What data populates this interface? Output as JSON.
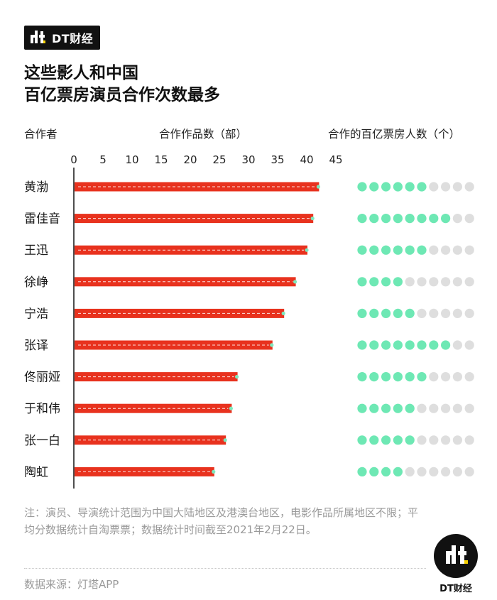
{
  "brand": {
    "name": "DT财经",
    "logo_icon": "dt-logo-icon"
  },
  "title": {
    "line1": "这些影人和中国",
    "line2": "百亿票房演员合作次数最多"
  },
  "headers": {
    "partner": "合作者",
    "works": "合作作品数（部）",
    "actors": "合作的百亿票房人数（个）"
  },
  "colors": {
    "bar": "#e8321e",
    "dot_on": "#6ee8b4",
    "dot_off": "#dedede",
    "axis": "#222222",
    "end_dot": "#7de8bd"
  },
  "chart_data": {
    "type": "bar",
    "orientation": "horizontal",
    "xlim": [
      0,
      45
    ],
    "ticks": [
      0,
      5,
      10,
      15,
      20,
      25,
      30,
      35,
      40,
      45
    ],
    "categories": [
      "黄渤",
      "雷佳音",
      "王迅",
      "徐峥",
      "宁浩",
      "张译",
      "佟丽娅",
      "于和伟",
      "张一白",
      "陶虹"
    ],
    "series": [
      {
        "values": [
          42,
          41,
          40,
          38,
          36,
          34,
          28,
          27,
          26,
          24
        ]
      }
    ],
    "dot_matrix": {
      "max": 10,
      "values": [
        6,
        8,
        6,
        4,
        5,
        8,
        6,
        5,
        5,
        4
      ]
    }
  },
  "footnote": "注：演员、导演统计范围为中国大陆地区及港澳台地区，电影作品所属地区不限；平均分数据统计自淘票票；数据统计时间截至2021年2月22日。",
  "source": "数据来源：灯塔APP",
  "corner_brand": "DT财经"
}
